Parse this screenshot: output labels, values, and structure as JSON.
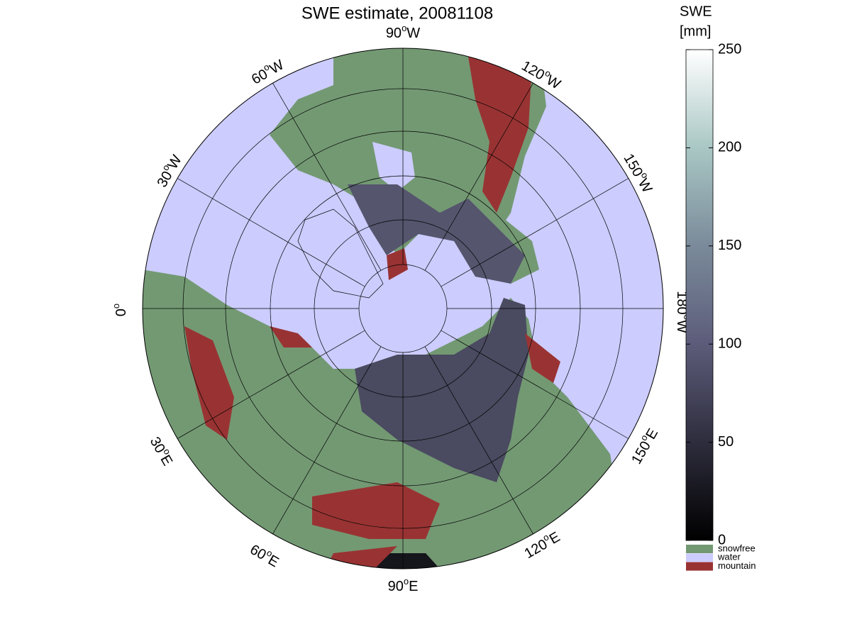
{
  "title": "SWE estimate, 20081108",
  "longitude_labels": [
    {
      "deg": "90",
      "sup": "o",
      "dir": "W"
    },
    {
      "deg": "60",
      "sup": "o",
      "dir": "W"
    },
    {
      "deg": "120",
      "sup": "o",
      "dir": "W"
    },
    {
      "deg": "30",
      "sup": "o",
      "dir": "W"
    },
    {
      "deg": "150",
      "sup": "o",
      "dir": "W"
    },
    {
      "deg": "0",
      "sup": "o"
    },
    {
      "deg": "180",
      "sup": "o",
      "dir": "W"
    },
    {
      "deg": "30",
      "sup": "o",
      "dir": "E"
    },
    {
      "deg": "150",
      "sup": "o",
      "dir": "E"
    },
    {
      "deg": "60",
      "sup": "o",
      "dir": "E"
    },
    {
      "deg": "120",
      "sup": "o",
      "dir": "E"
    },
    {
      "deg": "90",
      "sup": "o",
      "dir": "E"
    }
  ],
  "colorbar": {
    "title": [
      "SWE",
      "[mm]"
    ],
    "ylim": [
      0,
      250
    ],
    "yticks": [
      0,
      50,
      100,
      150,
      200,
      250
    ]
  },
  "legend": [
    {
      "name": "snowfree",
      "color": "#739973"
    },
    {
      "name": "water",
      "color": "#ccccff"
    },
    {
      "name": "mountain",
      "color": "#993333"
    }
  ]
}
